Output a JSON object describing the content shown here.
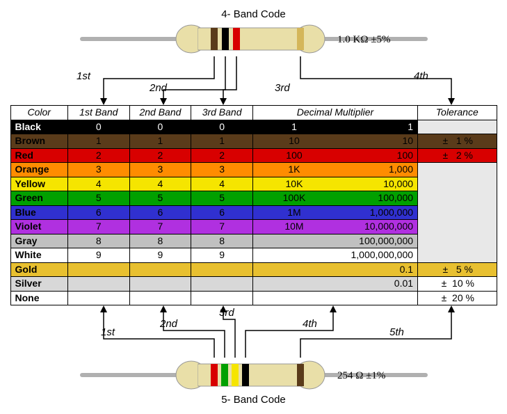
{
  "titles": {
    "top": "4- Band Code",
    "bottom": "5- Band Code"
  },
  "values": {
    "top": "1.0 KΩ  ±5%",
    "bottom": "254 Ω ±1%"
  },
  "bands4": [
    "#5a3b1a",
    "#000000",
    "#d80000",
    "#d4b65a"
  ],
  "bands5": [
    "#d80000",
    "#00a000",
    "#f5e500",
    "#000000",
    "#5a3b1a"
  ],
  "resistor_body": "#e9dfa8",
  "wire_color": "#b0b0b0",
  "arrow_labels_top": {
    "b1": "1st",
    "b2": "2nd",
    "b3": "3rd",
    "b4": "4th"
  },
  "arrow_labels_bottom": {
    "b1": "1st",
    "b2": "2nd",
    "b3": "3rd",
    "b4": "4th",
    "b5": "5th"
  },
  "headers": {
    "color": "Color",
    "b1": "1st Band",
    "b2": "2nd Band",
    "b3": "3rd Band",
    "mult": "Decimal Multiplier",
    "tol": "Tolerance"
  },
  "rows": [
    {
      "name": "Black",
      "bg": "#000000",
      "fg": "#ffffff",
      "d1": "0",
      "d2": "0",
      "d3": "0",
      "mk": "1",
      "mv": "1",
      "tol": "",
      "tolbg": "#e8e8e8"
    },
    {
      "name": "Brown",
      "bg": "#5a3b1a",
      "fg": "#000000",
      "d1": "1",
      "d2": "1",
      "d3": "1",
      "mk": "10",
      "mv": "10",
      "tol": "±   1 %",
      "tolbg": "#5a3b1a"
    },
    {
      "name": "Red",
      "bg": "#d80000",
      "fg": "#000000",
      "d1": "2",
      "d2": "2",
      "d3": "2",
      "mk": "100",
      "mv": "100",
      "tol": "±   2 %",
      "tolbg": "#d80000"
    },
    {
      "name": "Orange",
      "bg": "#ff8c00",
      "fg": "#000000",
      "d1": "3",
      "d2": "3",
      "d3": "3",
      "mk": "1K",
      "mv": "1,000",
      "tol": "",
      "tolbg": "#e8e8e8"
    },
    {
      "name": "Yellow",
      "bg": "#f5e500",
      "fg": "#000000",
      "d1": "4",
      "d2": "4",
      "d3": "4",
      "mk": "10K",
      "mv": "10,000",
      "tol": "",
      "tolbg": ""
    },
    {
      "name": "Green",
      "bg": "#00a000",
      "fg": "#000000",
      "d1": "5",
      "d2": "5",
      "d3": "5",
      "mk": "100K",
      "mv": "100,000",
      "tol": "",
      "tolbg": ""
    },
    {
      "name": "Blue",
      "bg": "#3030d0",
      "fg": "#000000",
      "d1": "6",
      "d2": "6",
      "d3": "6",
      "mk": "1M",
      "mv": "1,000,000",
      "tol": "",
      "tolbg": ""
    },
    {
      "name": "Violet",
      "bg": "#b030e0",
      "fg": "#000000",
      "d1": "7",
      "d2": "7",
      "d3": "7",
      "mk": "10M",
      "mv": "10,000,000",
      "tol": "",
      "tolbg": ""
    },
    {
      "name": "Gray",
      "bg": "#c0c0c0",
      "fg": "#000000",
      "d1": "8",
      "d2": "8",
      "d3": "8",
      "mk": "",
      "mv": "100,000,000",
      "tol": "",
      "tolbg": ""
    },
    {
      "name": "White",
      "bg": "#ffffff",
      "fg": "#000000",
      "d1": "9",
      "d2": "9",
      "d3": "9",
      "mk": "",
      "mv": "1,000,000,000",
      "tol": "",
      "tolbg": ""
    },
    {
      "name": "Gold",
      "bg": "#e8c030",
      "fg": "#000000",
      "d1": "",
      "d2": "",
      "d3": "",
      "mk": "",
      "mv": "0.1",
      "tol": "±   5 %",
      "tolbg": "#e8c030"
    },
    {
      "name": "Silver",
      "bg": "#d8d8d8",
      "fg": "#000000",
      "d1": "",
      "d2": "",
      "d3": "",
      "mk": "",
      "mv": "0.01",
      "tol": "±  10 %",
      "tolbg": "#ffffff"
    },
    {
      "name": "None",
      "bg": "#ffffff",
      "fg": "#000000",
      "d1": "",
      "d2": "",
      "d3": "",
      "mk": "",
      "mv": "",
      "tol": "±  20 %",
      "tolbg": "#ffffff"
    }
  ],
  "col_widths": {
    "color": 80,
    "b": 86,
    "mult": 230,
    "tol": 110
  },
  "tol_rowspan_start": 3,
  "tol_rowspan_len": 7
}
